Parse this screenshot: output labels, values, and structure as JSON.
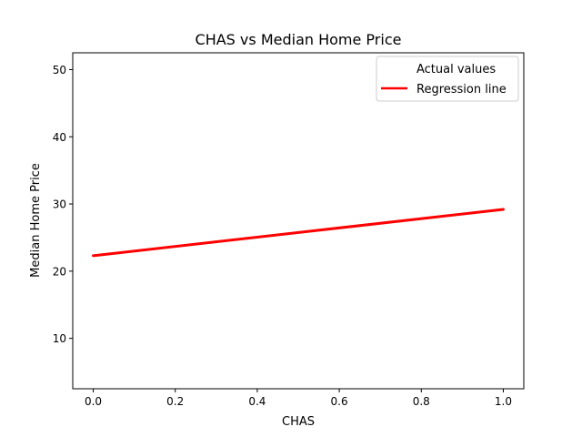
{
  "chart_data": {
    "type": "line",
    "title": "CHAS vs Median Home Price",
    "xlabel": "CHAS",
    "ylabel": "Median Home Price",
    "xlim": [
      -0.05,
      1.05
    ],
    "ylim": [
      2.5,
      52.5
    ],
    "xticks": [
      0.0,
      0.2,
      0.4,
      0.6,
      0.8,
      1.0
    ],
    "xtick_labels": [
      "0.0",
      "0.2",
      "0.4",
      "0.6",
      "0.8",
      "1.0"
    ],
    "yticks": [
      10,
      20,
      30,
      40,
      50
    ],
    "ytick_labels": [
      "10",
      "20",
      "30",
      "40",
      "50"
    ],
    "grid": false,
    "legend_placement": "top-right",
    "series": [
      {
        "name": "Actual values",
        "kind": "scatter",
        "color": "#ffffff",
        "x": [],
        "y": []
      },
      {
        "name": "Regression line",
        "kind": "line",
        "color": "#ff0000",
        "x": [
          0.0,
          1.0
        ],
        "y": [
          22.3,
          29.2
        ]
      }
    ]
  }
}
